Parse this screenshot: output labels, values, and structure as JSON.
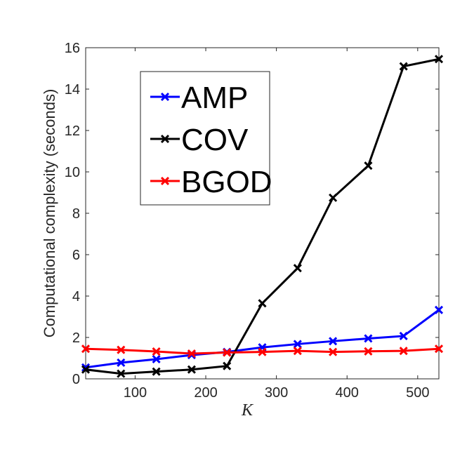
{
  "chart_data": {
    "type": "line",
    "x_label": "K",
    "y_label": "Computational complexity (seconds)",
    "x": [
      30,
      80,
      130,
      180,
      230,
      280,
      330,
      380,
      430,
      480,
      530
    ],
    "series": [
      {
        "name": "AMP",
        "color": "#0000ff",
        "values": [
          0.55,
          0.78,
          0.95,
          1.15,
          1.3,
          1.52,
          1.68,
          1.82,
          1.95,
          2.07,
          3.33
        ]
      },
      {
        "name": "COV",
        "color": "#000000",
        "values": [
          0.45,
          0.25,
          0.35,
          0.45,
          0.62,
          3.65,
          5.35,
          8.75,
          10.3,
          15.1,
          15.45
        ]
      },
      {
        "name": "BGOD",
        "color": "#ff0000",
        "values": [
          1.45,
          1.4,
          1.32,
          1.22,
          1.27,
          1.3,
          1.35,
          1.3,
          1.33,
          1.35,
          1.45
        ]
      }
    ],
    "xlim": [
      30,
      530
    ],
    "xticks": [
      100,
      200,
      300,
      400,
      500
    ],
    "ylim": [
      0,
      16
    ],
    "yticks": [
      0,
      2,
      4,
      6,
      8,
      10,
      12,
      14,
      16
    ],
    "legend": "upper-left"
  }
}
